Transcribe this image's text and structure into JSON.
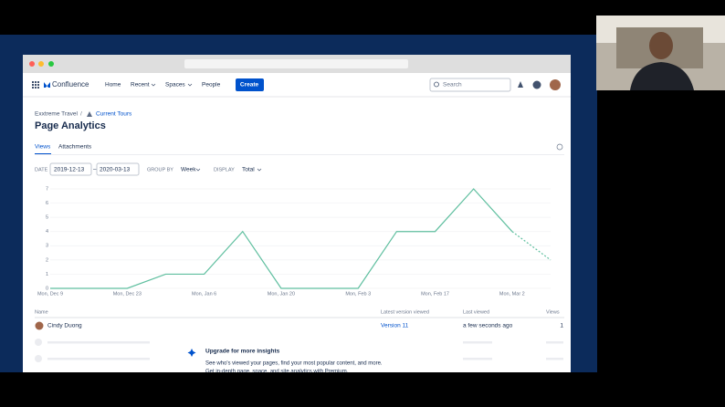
{
  "nav": {
    "product": "Confluence",
    "items": [
      "Home",
      "Recent",
      "Spaces",
      "People"
    ],
    "create": "Create",
    "search": "Search"
  },
  "breadcrumb": {
    "space": "Exxtreme Travel",
    "separator": "/",
    "page": "Current Tours"
  },
  "title": "Page Analytics",
  "tabs": [
    "Views",
    "Attachments"
  ],
  "filters": {
    "date_label": "DATE",
    "from": "2019-12-13",
    "dash": "–",
    "to": "2020-03-13",
    "group_label": "GROUP BY",
    "group": "Week",
    "display_label": "DISPLAY",
    "display": "Total"
  },
  "chart_data": {
    "type": "line",
    "categories": [
      "Mon, Dec 9",
      null,
      "Mon, Dec 23",
      null,
      "Mon, Jan 6",
      null,
      "Mon, Jan 20",
      null,
      "Mon, Feb 3",
      null,
      "Mon, Feb 17",
      null,
      "Mon, Mar 2",
      null
    ],
    "series": [
      {
        "color": "#5fbf9f",
        "values": [
          0,
          0,
          0,
          1,
          1,
          4,
          0,
          0,
          0,
          4,
          4,
          7,
          4,
          2
        ]
      }
    ],
    "dashed_last_segment": true,
    "ylim": [
      0,
      7
    ],
    "yticks": [
      0,
      1,
      2,
      3,
      4,
      5,
      6,
      7
    ],
    "grid": true
  },
  "table": {
    "headers": [
      "Name",
      "Latest version viewed",
      "Last viewed",
      "Views"
    ],
    "rows": [
      [
        "Cindy Duong",
        "Version 11",
        "a few seconds ago",
        "1"
      ]
    ]
  },
  "upsell": {
    "title": "Upgrade for more insights",
    "lines": [
      "See who's viewed your pages, find your most popular content, and more.",
      "Get in-depth page, space, and site analytics with Premium."
    ]
  }
}
